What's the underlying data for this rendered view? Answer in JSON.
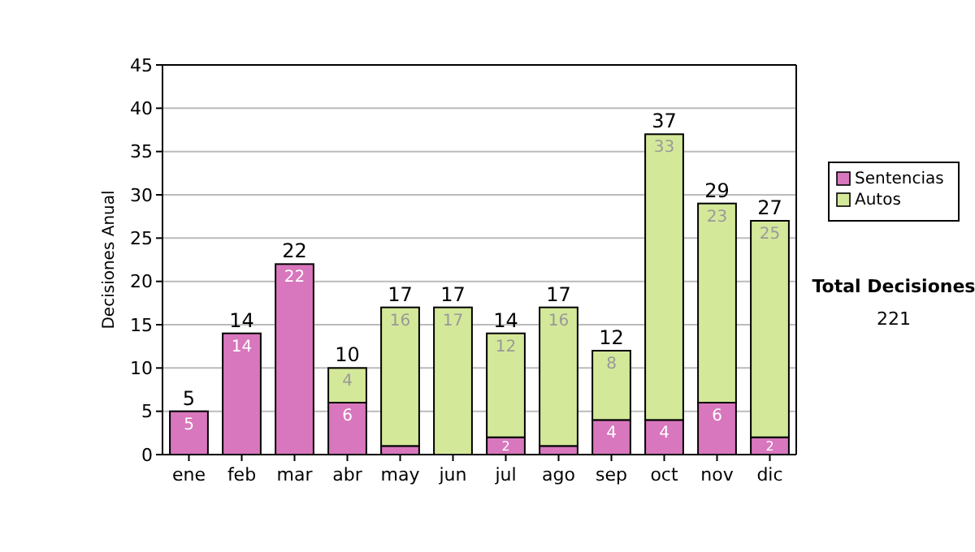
{
  "chart_data": {
    "type": "bar",
    "stacked": true,
    "ylabel": "Decisiones Anual",
    "categories": [
      "ene",
      "feb",
      "mar",
      "abr",
      "may",
      "jun",
      "jul",
      "ago",
      "sep",
      "oct",
      "nov",
      "dic"
    ],
    "series": [
      {
        "name": "Sentencias",
        "color": "#d877bd",
        "values": [
          5,
          14,
          22,
          6,
          1,
          0,
          2,
          1,
          4,
          4,
          6,
          2
        ],
        "value_labels": [
          "5",
          "14",
          "22",
          "6",
          null,
          null,
          "2",
          null,
          "4",
          "4",
          "6",
          "2"
        ]
      },
      {
        "name": "Autos",
        "color": "#d4e89a",
        "values": [
          0,
          0,
          0,
          4,
          16,
          17,
          12,
          16,
          8,
          33,
          23,
          25
        ],
        "value_labels": [
          null,
          null,
          null,
          "4",
          "16",
          "17",
          "12",
          "16",
          "8",
          "33",
          "23",
          "25"
        ]
      }
    ],
    "totals": [
      "5",
      "14",
      "22",
      "10",
      "17",
      "17",
      "14",
      "17",
      "12",
      "37",
      "29",
      "27"
    ],
    "ylim": [
      0,
      45
    ],
    "yticks": [
      0,
      5,
      10,
      15,
      20,
      25,
      30,
      35,
      40,
      45
    ],
    "grid": "y",
    "legend": "right",
    "annotations": [
      "Total Decisiones",
      "221"
    ]
  }
}
